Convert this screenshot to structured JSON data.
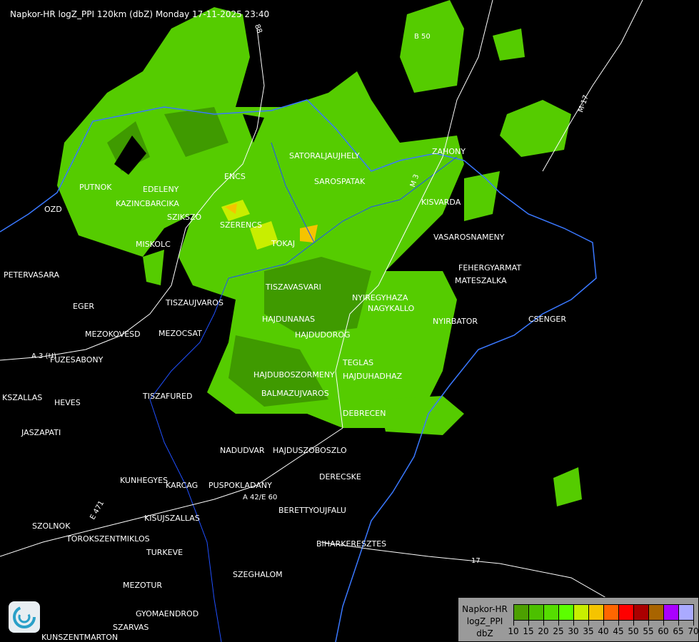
{
  "title": "Napkor-HR logZ_PPI 120km (dbZ) Monday 17-11-2025 23:40",
  "cities": [
    "SATORALJAUJHELY",
    "ZAHONY",
    "PUTNOK",
    "EDELENY",
    "ENCS",
    "SAROSPATAK",
    "KAZINCBARCIKA",
    "OZD",
    "SZIKSZO",
    "SZERENCS",
    "KISVARDA",
    "TOKAJ",
    "MISKOLC",
    "VASAROSNAMENY",
    "PETERVASARA",
    "FEHERGYARMAT",
    "MATESZALKA",
    "TISZAVASVARI",
    "NYIREGYHAZA",
    "EGER",
    "NAGYKALLO",
    "TISZAUJVAROS",
    "HAJDUNANAS",
    "NYIRBATOR",
    "CSENGER",
    "MEZOKOVESD",
    "MEZOCSAT",
    "HAJDUDOROG",
    "FUZESABONY",
    "TEGLAS",
    "HAJDUBOSZORMENY",
    "HAJDUHADHAZ",
    "KSZALLAS",
    "TISZAFURED",
    "BALMAZUJVAROS",
    "HEVES",
    "DEBRECEN",
    "JASZAPATI",
    "NADUDVAR",
    "HAJDUSZOBOSZLO",
    "KUNHEGYES",
    "DERECSKE",
    "KARCAG",
    "PUSPOKLADANY",
    "BERETTYOUJFALU",
    "KISUJSZALLAS",
    "SZOLNOK",
    "TOROKSZENTMIKLOS",
    "BIHARKERESZTES",
    "TURKEVE",
    "SZEGHALOM",
    "MEZOTUR",
    "GYOMAENDROD",
    "SZARVAS",
    "KUNSZENTMARTON"
  ],
  "roads": [
    "B 50",
    "A 3 (H)",
    "A 42/E 60",
    "17",
    "E 471",
    "M-17",
    "88",
    "M 3"
  ],
  "legend": {
    "lines": [
      "Napkor-HR",
      "logZ_PPI",
      "dbZ"
    ],
    "colors": [
      "#4ca000",
      "#4cc000",
      "#55dd00",
      "#5cff00",
      "#c8ee00",
      "#f5c400",
      "#ff6600",
      "#ff0000",
      "#aa0000",
      "#a86400",
      "#aa00ff",
      "#aaaaff"
    ],
    "ticks": [
      "10",
      "15",
      "20",
      "25",
      "30",
      "35",
      "40",
      "45",
      "50",
      "55",
      "60",
      "65",
      "70"
    ]
  },
  "colors": {
    "background": "#000000",
    "border": "#3a78ff",
    "road": "#ffffff",
    "river": "#2050ff",
    "echo_light": "#55cc00",
    "echo_dark": "#3f9a00"
  },
  "logo_icon": "weather-service-swirl-icon"
}
